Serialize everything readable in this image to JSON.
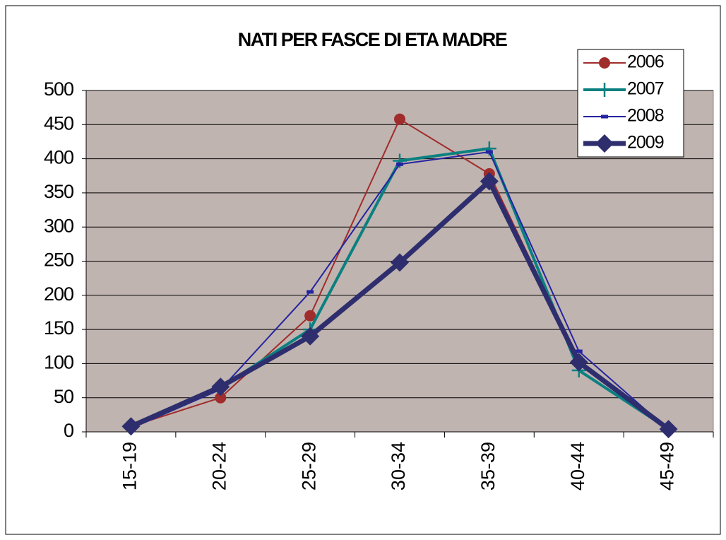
{
  "chart_data": {
    "type": "line",
    "title": "NATI PER FASCE DI ETA MADRE",
    "categories": [
      "15-19",
      "20-24",
      "25-29",
      "30-34",
      "35-39",
      "40-44",
      "45-49"
    ],
    "series": [
      {
        "name": "2006",
        "color": "#a02c2c",
        "marker": "circle",
        "line_width": 2,
        "values": [
          8,
          50,
          170,
          458,
          378,
          103,
          4
        ]
      },
      {
        "name": "2007",
        "color": "#0a8080",
        "marker": "plus",
        "line_width": 4,
        "values": [
          8,
          65,
          150,
          397,
          415,
          90,
          4
        ]
      },
      {
        "name": "2008",
        "color": "#2424a0",
        "marker": "dash",
        "line_width": 2,
        "values": [
          5,
          62,
          205,
          392,
          410,
          118,
          3
        ]
      },
      {
        "name": "2009",
        "color": "#2e2e6e",
        "marker": "diamond",
        "line_width": 7,
        "values": [
          8,
          66,
          140,
          248,
          367,
          102,
          4
        ]
      }
    ],
    "ylim": [
      0,
      500
    ],
    "yticks": [
      0,
      50,
      100,
      150,
      200,
      250,
      300,
      350,
      400,
      450,
      500
    ],
    "grid": true,
    "legend": "top-right"
  }
}
